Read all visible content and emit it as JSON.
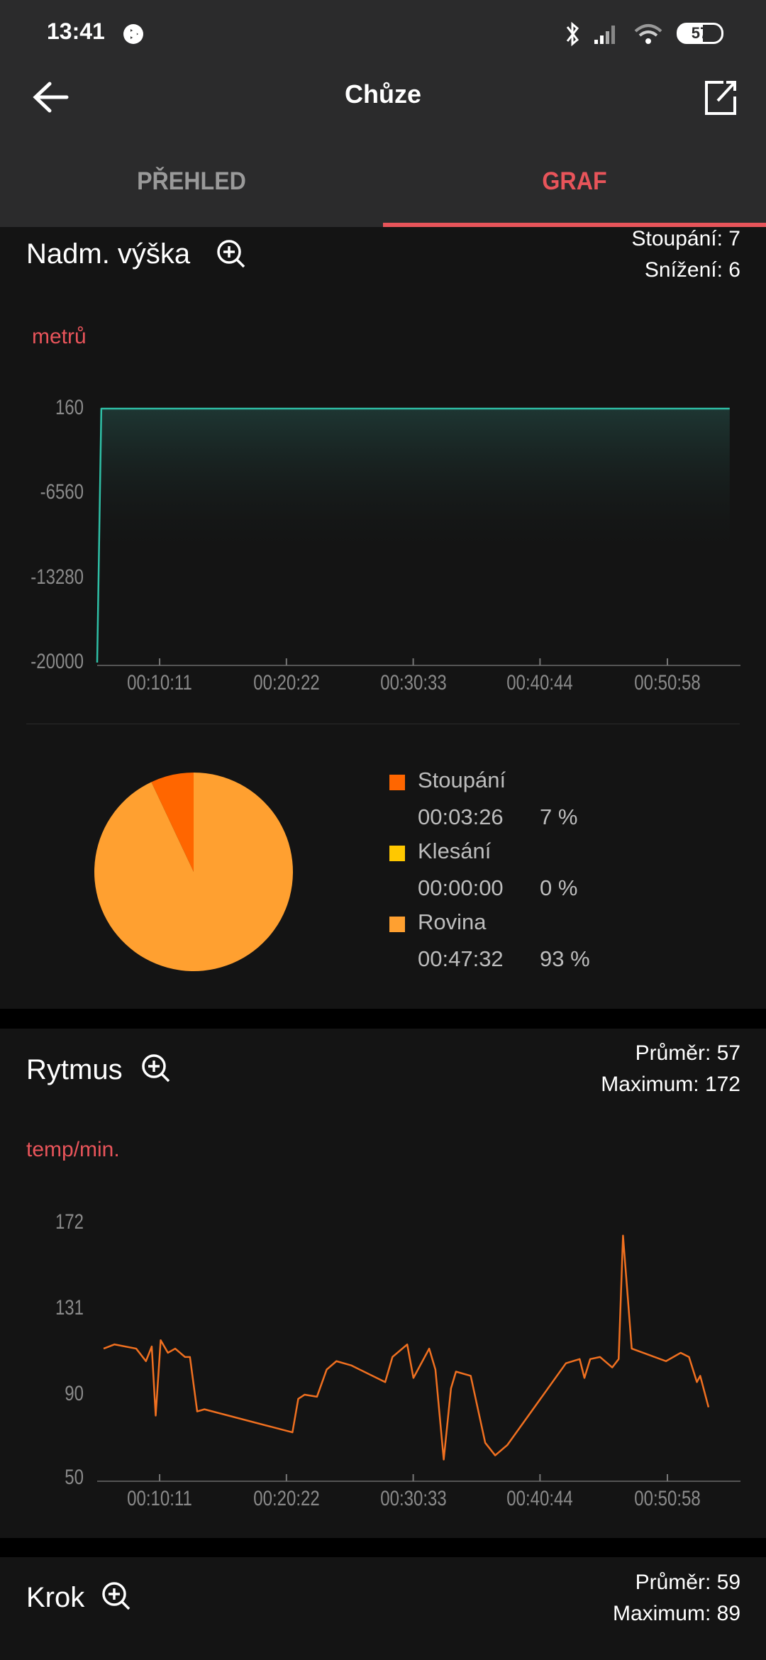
{
  "status_bar": {
    "time": "13:41",
    "battery": "57",
    "icons": [
      "media-play-icon",
      "bluetooth-icon",
      "signal-icon",
      "wifi-icon",
      "battery-icon"
    ]
  },
  "toolbar": {
    "title": "Chůze",
    "back_icon": "arrow-left-icon",
    "share_icon": "share-external-icon"
  },
  "tabs": [
    {
      "label": "PŘEHLED",
      "active": false
    },
    {
      "label": "GRAF",
      "active": true
    }
  ],
  "colors": {
    "accent": "#e8545a",
    "elevation_line": "#2fbfa6",
    "cadence_line": "#f07020",
    "pie_up": "#ff6600",
    "pie_down": "#ffc800",
    "pie_flat": "#ffa030"
  },
  "elevation": {
    "title": "Nadm. výška",
    "stat1": "Stoupání: 7",
    "stat2": "Snížení: 6",
    "unit": "metrů",
    "chart_data": {
      "type": "area",
      "yticks": [
        "160",
        "-6560",
        "-13280",
        "-20000"
      ],
      "ylim": [
        -20000,
        160
      ],
      "xticks": [
        "00:10:11",
        "00:20:22",
        "00:30:33",
        "00:40:44",
        "00:50:58"
      ],
      "xlim": [
        "00:05:10",
        "00:56:50"
      ],
      "points": [
        [
          "00:05:10",
          -20000
        ],
        [
          "00:05:30",
          160
        ],
        [
          "00:55:58",
          160
        ]
      ]
    }
  },
  "pie": {
    "chart_data": {
      "type": "pie",
      "slices": [
        {
          "name": "Stoupání",
          "time": "00:03:26",
          "percent": 7,
          "pct_label": "7 %",
          "color": "#ff6600"
        },
        {
          "name": "Klesání",
          "time": "00:00:00",
          "percent": 0,
          "pct_label": "0 %",
          "color": "#ffc800"
        },
        {
          "name": "Rovina",
          "time": "00:47:32",
          "percent": 93,
          "pct_label": "93 %",
          "color": "#ffa030"
        }
      ]
    }
  },
  "cadence": {
    "title": "Rytmus",
    "stat1": "Průměr: 57",
    "stat2": "Maximum: 172",
    "unit": "temp/min.",
    "chart_data": {
      "type": "line",
      "yticks": [
        "172",
        "131",
        "90",
        "50"
      ],
      "ylim": [
        50,
        172
      ],
      "xticks": [
        "00:10:11",
        "00:20:22",
        "00:30:33",
        "00:40:44",
        "00:50:58"
      ],
      "xlim": [
        "00:05:10",
        "00:56:50"
      ],
      "points": [
        [
          "00:05:41",
          112
        ],
        [
          "00:06:33",
          114
        ],
        [
          "00:08:18",
          112
        ],
        [
          "00:09:05",
          106
        ],
        [
          "00:09:33",
          113
        ],
        [
          "00:09:52",
          80
        ],
        [
          "00:10:16",
          116
        ],
        [
          "00:10:51",
          110
        ],
        [
          "00:11:26",
          112
        ],
        [
          "00:12:13",
          108
        ],
        [
          "00:12:37",
          108
        ],
        [
          "00:13:12",
          82
        ],
        [
          "00:13:47",
          83
        ],
        [
          "00:20:51",
          72
        ],
        [
          "00:21:19",
          88
        ],
        [
          "00:21:50",
          90
        ],
        [
          "00:22:49",
          89
        ],
        [
          "00:23:36",
          102
        ],
        [
          "00:24:23",
          106
        ],
        [
          "00:25:34",
          104
        ],
        [
          "00:28:18",
          96
        ],
        [
          "00:28:53",
          108
        ],
        [
          "00:30:04",
          114
        ],
        [
          "00:30:34",
          98
        ],
        [
          "00:31:50",
          112
        ],
        [
          "00:32:20",
          102
        ],
        [
          "00:33:00",
          59
        ],
        [
          "00:33:35",
          93
        ],
        [
          "00:33:59",
          101
        ],
        [
          "00:35:10",
          99
        ],
        [
          "00:36:20",
          67
        ],
        [
          "00:37:08",
          61
        ],
        [
          "00:38:07",
          66
        ],
        [
          "00:42:49",
          105
        ],
        [
          "00:43:55",
          107
        ],
        [
          "00:44:18",
          98
        ],
        [
          "00:44:46",
          107
        ],
        [
          "00:45:33",
          108
        ],
        [
          "00:46:32",
          103
        ],
        [
          "00:47:03",
          107
        ],
        [
          "00:47:24",
          166
        ],
        [
          "00:48:06",
          112
        ],
        [
          "00:49:29",
          109
        ],
        [
          "00:50:51",
          106
        ],
        [
          "00:52:02",
          110
        ],
        [
          "00:52:42",
          108
        ],
        [
          "00:53:20",
          96
        ],
        [
          "00:53:36",
          99
        ],
        [
          "00:54:16",
          84
        ]
      ]
    }
  },
  "step": {
    "title": "Krok",
    "stat1": "Průměr: 59",
    "stat2": "Maximum: 89"
  }
}
